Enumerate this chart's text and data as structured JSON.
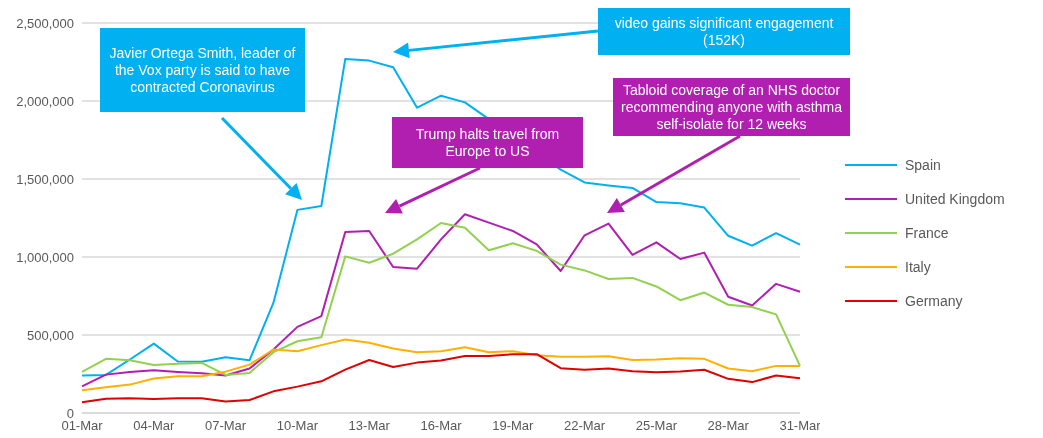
{
  "chart_data": {
    "type": "line",
    "categories": [
      "01-Mar",
      null,
      null,
      "04-Mar",
      null,
      null,
      "07-Mar",
      null,
      null,
      "10-Mar",
      null,
      null,
      "13-Mar",
      null,
      null,
      "16-Mar",
      null,
      null,
      "19-Mar",
      null,
      null,
      "22-Mar",
      null,
      null,
      "25-Mar",
      null,
      null,
      "28-Mar",
      null,
      null,
      "31-Mar"
    ],
    "series": [
      {
        "name": "Spain",
        "color": "#00b0f0",
        "values": [
          240000,
          244000,
          343000,
          445000,
          330000,
          328000,
          358000,
          338000,
          707000,
          1302000,
          1327000,
          2270000,
          2259000,
          2216000,
          1957000,
          2034000,
          1991000,
          null,
          null,
          null,
          1560000,
          1478000,
          1459000,
          1443000,
          1352000,
          1345000,
          1317000,
          1136000,
          1073000,
          1153000,
          1079000
        ]
      },
      {
        "name": "United Kingdom",
        "color": "#b01fb0",
        "values": [
          171000,
          246000,
          263000,
          274000,
          263000,
          255000,
          240000,
          285000,
          407000,
          552000,
          621000,
          1160000,
          1167000,
          936000,
          925000,
          1113000,
          1274000,
          1220000,
          1167000,
          1081000,
          910000,
          1139000,
          1214000,
          1013000,
          1094000,
          987000,
          1028000,
          745000,
          689000,
          828000,
          777000
        ]
      },
      {
        "name": "France",
        "color": "#92d050",
        "values": [
          263000,
          347000,
          338000,
          308000,
          315000,
          321000,
          244000,
          257000,
          390000,
          460000,
          486000,
          1004000,
          963000,
          1021000,
          1113000,
          1218000,
          1188000,
          1043000,
          1088000,
          1039000,
          951000,
          914000,
          859000,
          866000,
          811000,
          723000,
          772000,
          694000,
          679000,
          632000,
          302000
        ]
      },
      {
        "name": "Italy",
        "color": "#ffb000",
        "values": [
          146000,
          165000,
          182000,
          221000,
          236000,
          236000,
          265000,
          310000,
          407000,
          396000,
          435000,
          471000,
          450000,
          413000,
          390000,
          396000,
          422000,
          390000,
          396000,
          370000,
          360000,
          360000,
          364000,
          340000,
          343000,
          351000,
          347000,
          285000,
          268000,
          302000,
          302000
        ]
      },
      {
        "name": "Germany",
        "color": "#e00000",
        "values": [
          69000,
          92000,
          94000,
          90000,
          94000,
          94000,
          73000,
          83000,
          139000,
          169000,
          203000,
          278000,
          340000,
          295000,
          323000,
          336000,
          366000,
          366000,
          377000,
          377000,
          287000,
          278000,
          285000,
          268000,
          262000,
          266000,
          277000,
          219000,
          198000,
          240000,
          223000
        ]
      }
    ],
    "ylim": [
      0,
      2500000
    ],
    "yticks": [
      {
        "value": 0,
        "label": "0"
      },
      {
        "value": 500000,
        "label": "500,000"
      },
      {
        "value": 1000000,
        "label": "1,000,000"
      },
      {
        "value": 1500000,
        "label": "1,500,000"
      },
      {
        "value": 2000000,
        "label": "2,000,000"
      },
      {
        "value": 2500000,
        "label": "2,500,000"
      }
    ],
    "grid": "y",
    "legend": "right",
    "marker": "none",
    "line_style": "solid",
    "annotations": [
      "Javier Ortega Smith, leader of the Vox party is said to have contracted Coronavirus",
      "video gains significant engagement (152K)",
      "Trump halts travel from Europe to US",
      "Tabloid coverage of an NHS doctor recommending anyone with asthma self-isolate for 12 weeks"
    ]
  }
}
